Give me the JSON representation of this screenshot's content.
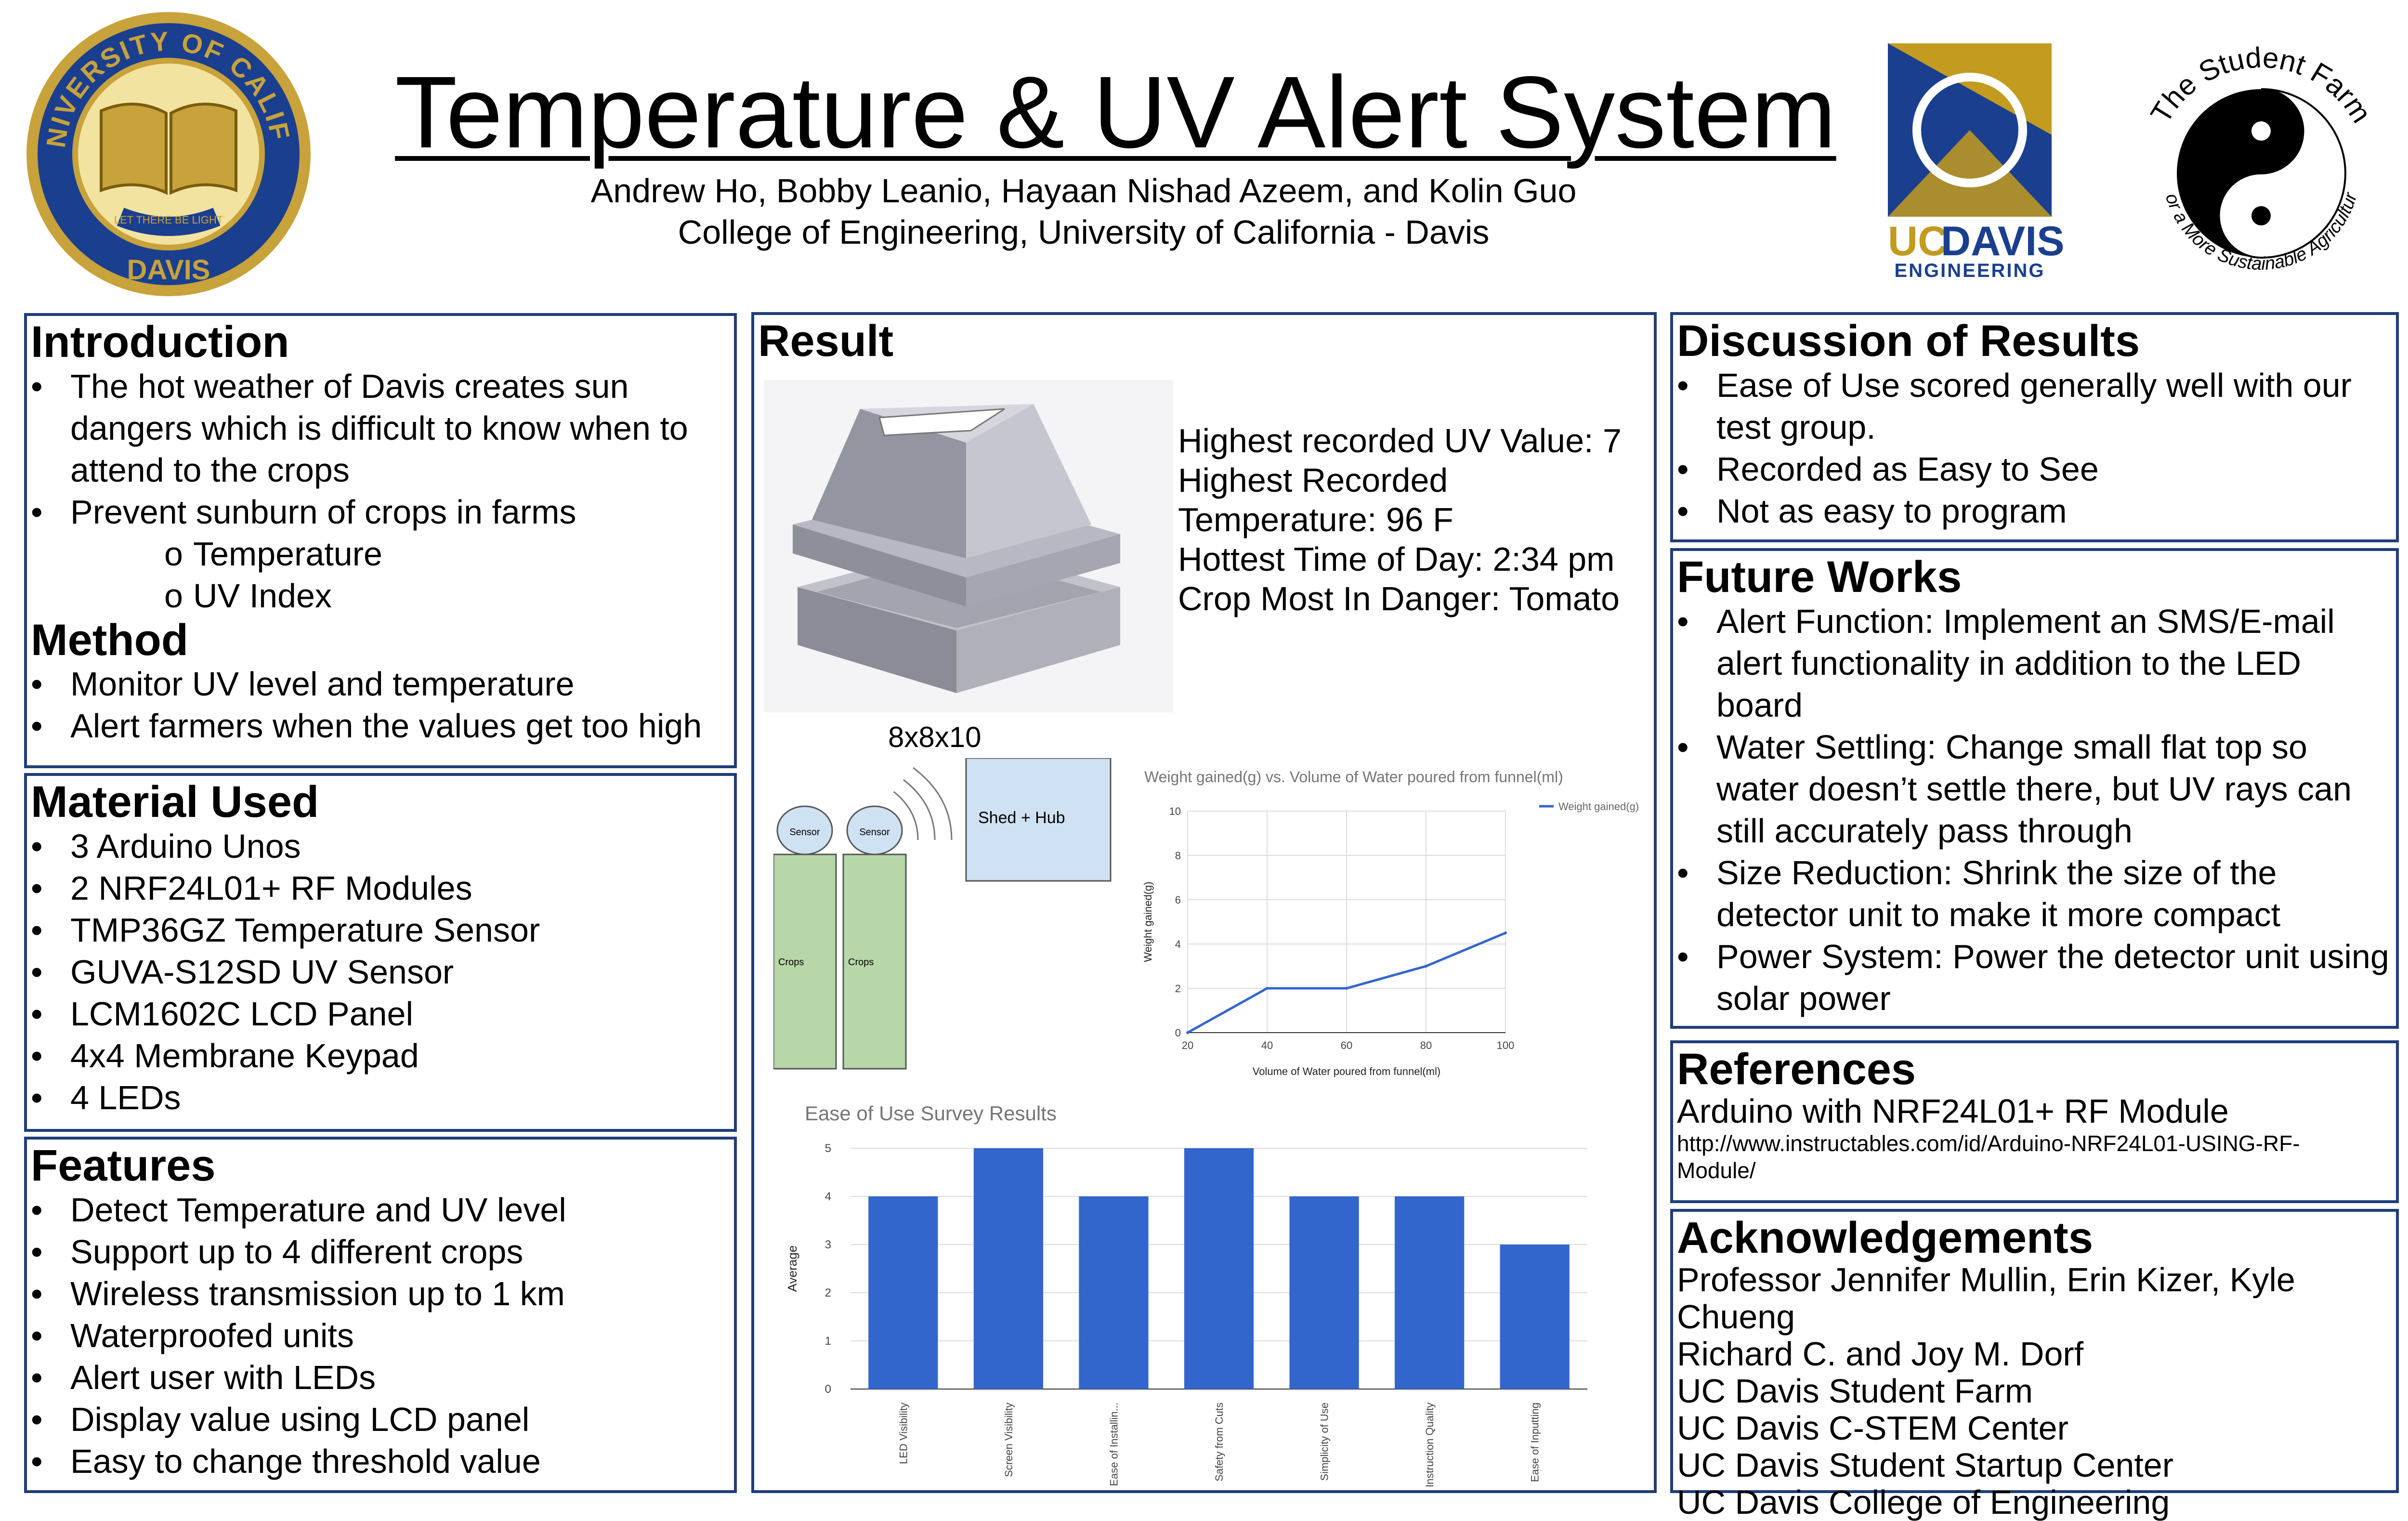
{
  "header": {
    "title": "Temperature & UV Alert System",
    "authors": "Andrew Ho, Bobby Leanio, Hayaan Nishad Azeem, and Kolin Guo",
    "affiliation": "College of Engineering, University of California - Davis"
  },
  "logos": {
    "uc_seal": {
      "text_top": "THE UNIVERSITY OF CALIFORNIA",
      "text_bottom": "DAVIS",
      "motto": "LET THERE BE LIGHT",
      "color": "#c8a23a"
    },
    "ucdavis_eng": {
      "text_uc": "UC",
      "text_davis": "DAVIS",
      "text_eng": "ENGINEERING",
      "blue": "#1b3f8f",
      "gold": "#c29b1f"
    },
    "student_farm": {
      "text_top": "The Student Farm",
      "text_bottom": "For a More Sustainable Agriculture"
    }
  },
  "introduction": {
    "heading": "Introduction",
    "bullets": [
      "The hot weather of Davis creates sun dangers which is difficult to know when to attend to the crops",
      "Prevent sunburn of crops in farms"
    ],
    "sub_bullets": [
      "Temperature",
      "UV Index"
    ]
  },
  "method": {
    "heading": "Method",
    "bullets": [
      "Monitor UV level and temperature",
      "Alert farmers when the values get too high"
    ]
  },
  "materials": {
    "heading": "Material Used",
    "bullets": [
      "3 Arduino Unos",
      "2 NRF24L01+ RF Modules",
      "TMP36GZ Temperature Sensor",
      "GUVA-S12SD UV Sensor",
      "LCM1602C LCD Panel",
      "4x4 Membrane Keypad",
      "4 LEDs"
    ]
  },
  "features": {
    "heading": "Features",
    "bullets": [
      "Detect Temperature and UV level",
      "Support up to 4 different crops",
      "Wireless transmission up to 1 km",
      "Waterproofed units",
      "Alert user with LEDs",
      "Display value using LCD panel",
      "Easy to change threshold value"
    ]
  },
  "result": {
    "heading": "Result",
    "stats": [
      "Highest recorded UV Value: 7",
      "Highest Recorded",
      "Temperature: 96 F",
      "Hottest Time of Day: 2:34 pm",
      "Crop Most In Danger: Tomato"
    ],
    "layout_label": "8x8x10",
    "diagram": {
      "sensor_label": "Sensor",
      "crops_label": "Crops",
      "hub_label": "Shed + Hub"
    }
  },
  "chart_data": [
    {
      "type": "line",
      "title": "Weight gained(g) vs. Volume of Water poured from funnel(ml)",
      "xlabel": "Volume of Water poured from funnel(ml)",
      "ylabel": "Weight gained(g)",
      "x": [
        20,
        40,
        60,
        80,
        100
      ],
      "series": [
        {
          "name": "Weight gained(g)",
          "values": [
            0,
            2,
            2,
            3,
            4.5
          ]
        }
      ],
      "xticks": [
        "20",
        "40",
        "60",
        "80",
        "100"
      ],
      "yticks": [
        "0",
        "2",
        "4",
        "6",
        "8",
        "10"
      ],
      "xlim": [
        20,
        100
      ],
      "ylim": [
        0,
        10
      ],
      "grid": true,
      "legend": "top-right",
      "color": "#3366cc"
    },
    {
      "type": "bar",
      "title": "Ease of Use Survey Results",
      "ylabel": "Average",
      "categories": [
        "LED Visibility",
        "Screen Visibility",
        "Ease of Installin...",
        "Safety from Cuts",
        "Simplicity of Use",
        "Instruction Quality",
        "Ease of Inputting"
      ],
      "values": [
        4,
        5,
        4,
        5,
        4,
        4,
        3
      ],
      "yticks": [
        "0",
        "1",
        "2",
        "3",
        "4",
        "5"
      ],
      "ylim": [
        0,
        5
      ],
      "grid": true,
      "color": "#3366cc"
    }
  ],
  "discussion": {
    "heading": "Discussion of Results",
    "bullets": [
      "Ease of Use scored generally well with our test group.",
      "Recorded as Easy to See",
      "Not as easy to program"
    ]
  },
  "future": {
    "heading": "Future Works",
    "bullets": [
      "Alert Function: Implement an SMS/E-mail alert functionality in addition to the LED board",
      "Water Settling: Change small flat top so water doesn’t settle there, but UV rays can still accurately pass through",
      "Size Reduction: Shrink the size of the detector unit to make it more compact",
      "Power System: Power the detector unit using solar power"
    ]
  },
  "references": {
    "heading": "References",
    "title": "Arduino with NRF24L01+ RF Module",
    "url_line1": "http://www.instructables.com/id/Arduino-NRF24L01-USING-RF-",
    "url_line2": "Module/"
  },
  "acknowledgements": {
    "heading": "Acknowledgements",
    "lines": [
      "Professor Jennifer Mullin, Erin Kizer, Kyle Chueng",
      "Richard C. and Joy M. Dorf",
      "UC Davis Student Farm",
      "UC Davis C-STEM Center",
      "UC Davis Student Startup Center",
      "UC Davis College of Engineering"
    ]
  },
  "colors": {
    "panel_border": "#1f3d7a",
    "chart_blue": "#3366cc",
    "diagram_green": "#b7d7a8",
    "diagram_blue": "#cfe2f3"
  }
}
